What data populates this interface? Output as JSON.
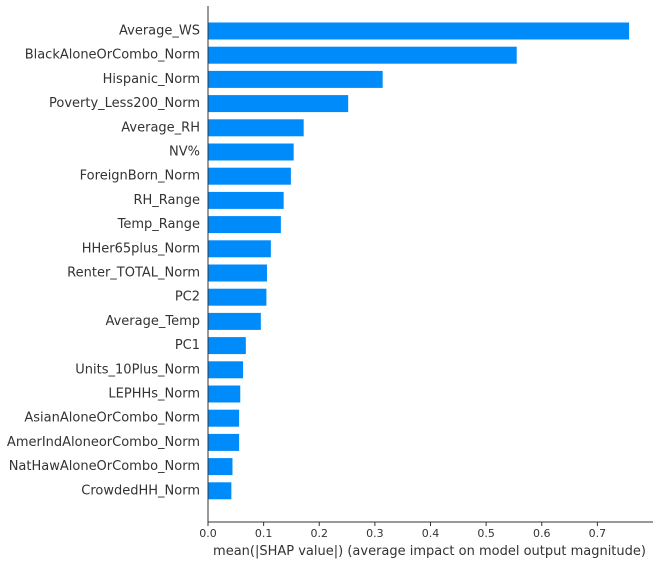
{
  "chart_data": {
    "type": "bar",
    "orientation": "horizontal",
    "xlabel": "mean(|SHAP value|) (average impact on model output magnitude)",
    "xlim": [
      0,
      0.8
    ],
    "xticks": [
      "0.0",
      "0.1",
      "0.2",
      "0.3",
      "0.4",
      "0.5",
      "0.6",
      "0.7"
    ],
    "bar_color": "#008bfb",
    "grid": false,
    "categories": [
      "Average_WS",
      "BlackAloneOrCombo_Norm",
      "Hispanic_Norm",
      "Poverty_Less200_Norm",
      "Average_RH",
      "NV%",
      "ForeignBorn_Norm",
      "RH_Range",
      "Temp_Range",
      "HHer65plus_Norm",
      "Renter_TOTAL_Norm",
      "PC2",
      "Average_Temp",
      "PC1",
      "Units_10Plus_Norm",
      "LEPHHs_Norm",
      "AsianAloneOrCombo_Norm",
      "AmerIndAloneorCombo_Norm",
      "NatHawAloneOrCombo_Norm",
      "CrowdedHH_Norm"
    ],
    "values": [
      0.757,
      0.555,
      0.314,
      0.252,
      0.172,
      0.154,
      0.149,
      0.136,
      0.131,
      0.113,
      0.106,
      0.105,
      0.095,
      0.068,
      0.063,
      0.058,
      0.056,
      0.056,
      0.044,
      0.042
    ]
  }
}
